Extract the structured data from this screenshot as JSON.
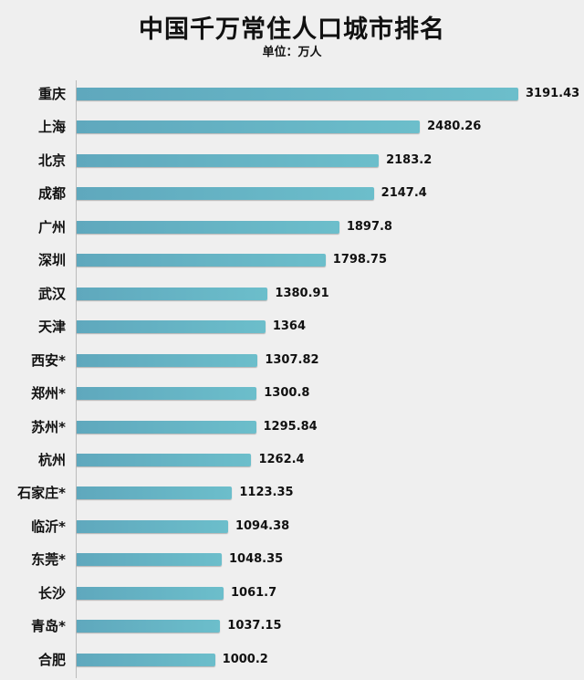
{
  "chart_data": {
    "type": "bar",
    "orientation": "horizontal",
    "title": "中国千万常住人口城市排名",
    "subtitle": "单位：万人",
    "xlabel": "",
    "ylabel": "",
    "grid": false,
    "categories": [
      "重庆",
      "上海",
      "北京",
      "成都",
      "广州",
      "深圳",
      "武汉",
      "天津",
      "西安*",
      "郑州*",
      "苏州*",
      "杭州",
      "石家庄*",
      "临沂*",
      "东莞*",
      "长沙",
      "青岛*",
      "合肥"
    ],
    "values": [
      3191.43,
      2480.26,
      2183.2,
      2147.4,
      1897.8,
      1798.75,
      1380.91,
      1364,
      1307.82,
      1300.8,
      1295.84,
      1262.4,
      1123.35,
      1094.38,
      1048.35,
      1061.7,
      1037.15,
      1000.2
    ],
    "value_labels": [
      "3191.43",
      "2480.26",
      "2183.2",
      "2147.4",
      "1897.8",
      "1798.75",
      "1380.91",
      "1364",
      "1307.82",
      "1300.8",
      "1295.84",
      "1262.4",
      "1123.35",
      "1094.38",
      "1048.35",
      "1061.7",
      "1037.15",
      "1000.2"
    ],
    "xlim": [
      0,
      3191.43
    ],
    "bar_color": "#67b5c6"
  }
}
